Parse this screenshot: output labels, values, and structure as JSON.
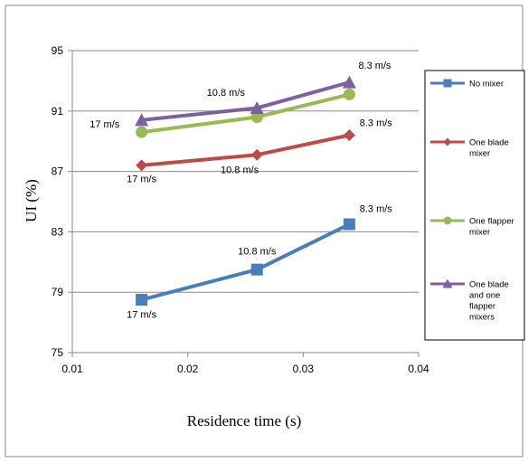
{
  "chart_data": {
    "type": "line",
    "title": "",
    "xlabel": "Residence time (s)",
    "ylabel": "UI (%)",
    "xlim": [
      0.01,
      0.04
    ],
    "ylim": [
      75,
      95
    ],
    "xticks": [
      0.01,
      0.02,
      0.03,
      0.04
    ],
    "xtick_labels": [
      "0.01",
      "0.02",
      "0.03",
      "0.04"
    ],
    "yticks": [
      75,
      79,
      83,
      87,
      91,
      95
    ],
    "ytick_labels": [
      "75",
      "79",
      "83",
      "87",
      "91",
      "95"
    ],
    "grid": "horizontal",
    "legend_position": "right",
    "series": [
      {
        "name": "No mixer",
        "color": "#4a7ebb",
        "marker": "square",
        "x": [
          0.016,
          0.026,
          0.034
        ],
        "y": [
          78.5,
          80.5,
          83.5
        ]
      },
      {
        "name": "One blade mixer",
        "color": "#be4b48",
        "marker": "diamond",
        "x": [
          0.016,
          0.026,
          0.034
        ],
        "y": [
          87.4,
          88.1,
          89.4
        ]
      },
      {
        "name": "One flapper mixer",
        "color": "#98b954",
        "marker": "circle",
        "x": [
          0.016,
          0.026,
          0.034
        ],
        "y": [
          89.6,
          90.6,
          92.1
        ]
      },
      {
        "name": "One blade and one flapper mixers",
        "color": "#7d60a0",
        "marker": "triangle",
        "x": [
          0.016,
          0.026,
          0.034
        ],
        "y": [
          90.4,
          91.2,
          92.9
        ]
      }
    ],
    "annotations": [
      {
        "text": "17 m/s",
        "x": 0.016,
        "y": 77.3
      },
      {
        "text": "10.8 m/s",
        "x": 0.026,
        "y": 81.5
      },
      {
        "text": "8.3 m/s",
        "x": 0.0363,
        "y": 84.3
      },
      {
        "text": "17 m/s",
        "x": 0.016,
        "y": 86.3
      },
      {
        "text": "10.8 m/s",
        "x": 0.0245,
        "y": 86.9
      },
      {
        "text": "8.3 m/s",
        "x": 0.0363,
        "y": 90.0
      },
      {
        "text": "17 m/s",
        "x": 0.0128,
        "y": 89.9
      },
      {
        "text": "10.8 m/s",
        "x": 0.0233,
        "y": 92.0
      },
      {
        "text": "8.3 m/s",
        "x": 0.0362,
        "y": 93.8
      }
    ]
  }
}
